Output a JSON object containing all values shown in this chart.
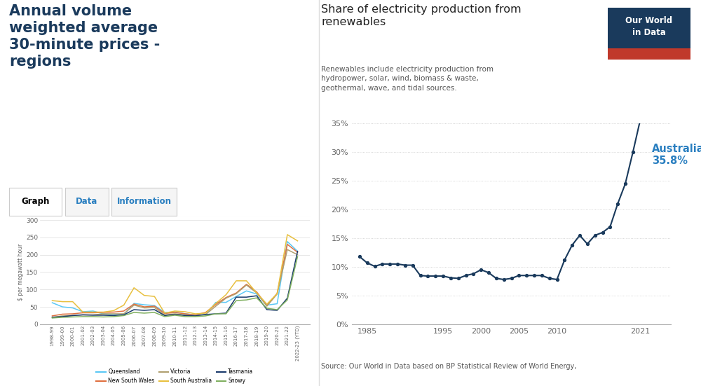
{
  "left_title": "Annual volume\nweighted average\n30-minute prices -\nregions",
  "left_title_color": "#1a3a5c",
  "tab_labels": [
    "Graph",
    "Data",
    "Information"
  ],
  "left_ylabel": "$ per megawatt hour",
  "left_xlabels": [
    "1998-99",
    "1999-00",
    "2000-01",
    "2001-02",
    "2002-03",
    "2003-04",
    "2004-05",
    "2005-06",
    "2006-07",
    "2007-08",
    "2008-09",
    "2009-10",
    "2010-11",
    "2011-12",
    "2012-13",
    "2013-14",
    "2014-15",
    "2015-16",
    "2016-17",
    "2017-18",
    "2018-19",
    "2019-20",
    "2020-21",
    "2021-22",
    "2022-23 (YTD)"
  ],
  "left_series": {
    "Queensland": [
      62,
      50,
      47,
      36,
      38,
      30,
      28,
      28,
      60,
      56,
      54,
      34,
      35,
      30,
      27,
      27,
      63,
      63,
      80,
      96,
      87,
      55,
      59,
      238,
      210
    ],
    "New South Wales": [
      24,
      29,
      30,
      33,
      33,
      34,
      35,
      38,
      58,
      50,
      52,
      31,
      34,
      30,
      27,
      34,
      57,
      77,
      90,
      115,
      93,
      54,
      89,
      230,
      207
    ],
    "Victoria": [
      20,
      24,
      25,
      27,
      27,
      30,
      30,
      30,
      55,
      47,
      48,
      27,
      30,
      27,
      25,
      28,
      52,
      75,
      88,
      113,
      90,
      52,
      87,
      215,
      200
    ],
    "South Australia": [
      68,
      65,
      65,
      35,
      35,
      35,
      39,
      55,
      105,
      83,
      80,
      32,
      38,
      36,
      30,
      32,
      60,
      85,
      125,
      125,
      90,
      58,
      88,
      258,
      240
    ],
    "Tasmania": [
      20,
      22,
      25,
      27,
      26,
      26,
      25,
      27,
      42,
      40,
      42,
      25,
      28,
      25,
      24,
      28,
      30,
      32,
      78,
      78,
      82,
      42,
      40,
      75,
      210
    ],
    "Snowy": [
      18,
      20,
      21,
      22,
      22,
      21,
      22,
      25,
      34,
      32,
      34,
      22,
      26,
      22,
      22,
      24,
      30,
      30,
      68,
      70,
      76,
      46,
      42,
      70,
      195
    ]
  },
  "left_series_colors": {
    "Queensland": "#5bc8f5",
    "New South Wales": "#e07040",
    "Victoria": "#b0a070",
    "South Australia": "#e8c040",
    "Tasmania": "#1a3a6c",
    "Snowy": "#80b060"
  },
  "left_ylim": [
    0,
    300
  ],
  "left_yticks": [
    0,
    50,
    100,
    150,
    200,
    250,
    300
  ],
  "right_title": "Share of electricity production from\nrenewables",
  "right_subtitle": "Renewables include electricity production from\nhydropower, solar, wind, biomass & waste,\ngeothermal, wave, and tidal sources.",
  "right_title_color": "#222222",
  "right_subtitle_color": "#555555",
  "owid_box_bg": "#1a3a5c",
  "owid_box_text": "Our World\nin Data",
  "owid_red_bar": "#c0392b",
  "right_years": [
    1984,
    1985,
    1986,
    1987,
    1988,
    1989,
    1990,
    1991,
    1992,
    1993,
    1994,
    1995,
    1996,
    1997,
    1998,
    1999,
    2000,
    2001,
    2002,
    2003,
    2004,
    2005,
    2006,
    2007,
    2008,
    2009,
    2010,
    2011,
    2012,
    2013,
    2014,
    2015,
    2016,
    2017,
    2018,
    2019,
    2020,
    2021,
    2022
  ],
  "right_values": [
    11.8,
    10.7,
    10.1,
    10.5,
    10.5,
    10.5,
    10.3,
    10.3,
    8.5,
    8.4,
    8.4,
    8.4,
    8.1,
    8.0,
    8.5,
    8.8,
    9.5,
    9.0,
    8.0,
    7.8,
    8.0,
    8.5,
    8.5,
    8.5,
    8.5,
    8.0,
    7.8,
    11.2,
    13.8,
    15.5,
    14.0,
    15.5,
    16.0,
    17.0,
    21.0,
    24.5,
    30.0,
    35.8,
    35.8
  ],
  "right_line_color": "#1a3a5c",
  "right_annotation": "Australia\n35.8%",
  "right_annotation_color": "#2a7fc0",
  "right_ylim": [
    0,
    35
  ],
  "right_yticks": [
    0,
    5,
    10,
    15,
    20,
    25,
    30,
    35
  ],
  "right_ytick_labels": [
    "0%",
    "5%",
    "10%",
    "15%",
    "20%",
    "25%",
    "30%",
    "35%"
  ],
  "right_xlim": [
    1983,
    2025
  ],
  "right_xticks": [
    1985,
    1995,
    2000,
    2005,
    2010,
    2021
  ],
  "source_text": "Source: Our World in Data based on BP Statistical Review of World Energy,",
  "background_color": "#ffffff"
}
